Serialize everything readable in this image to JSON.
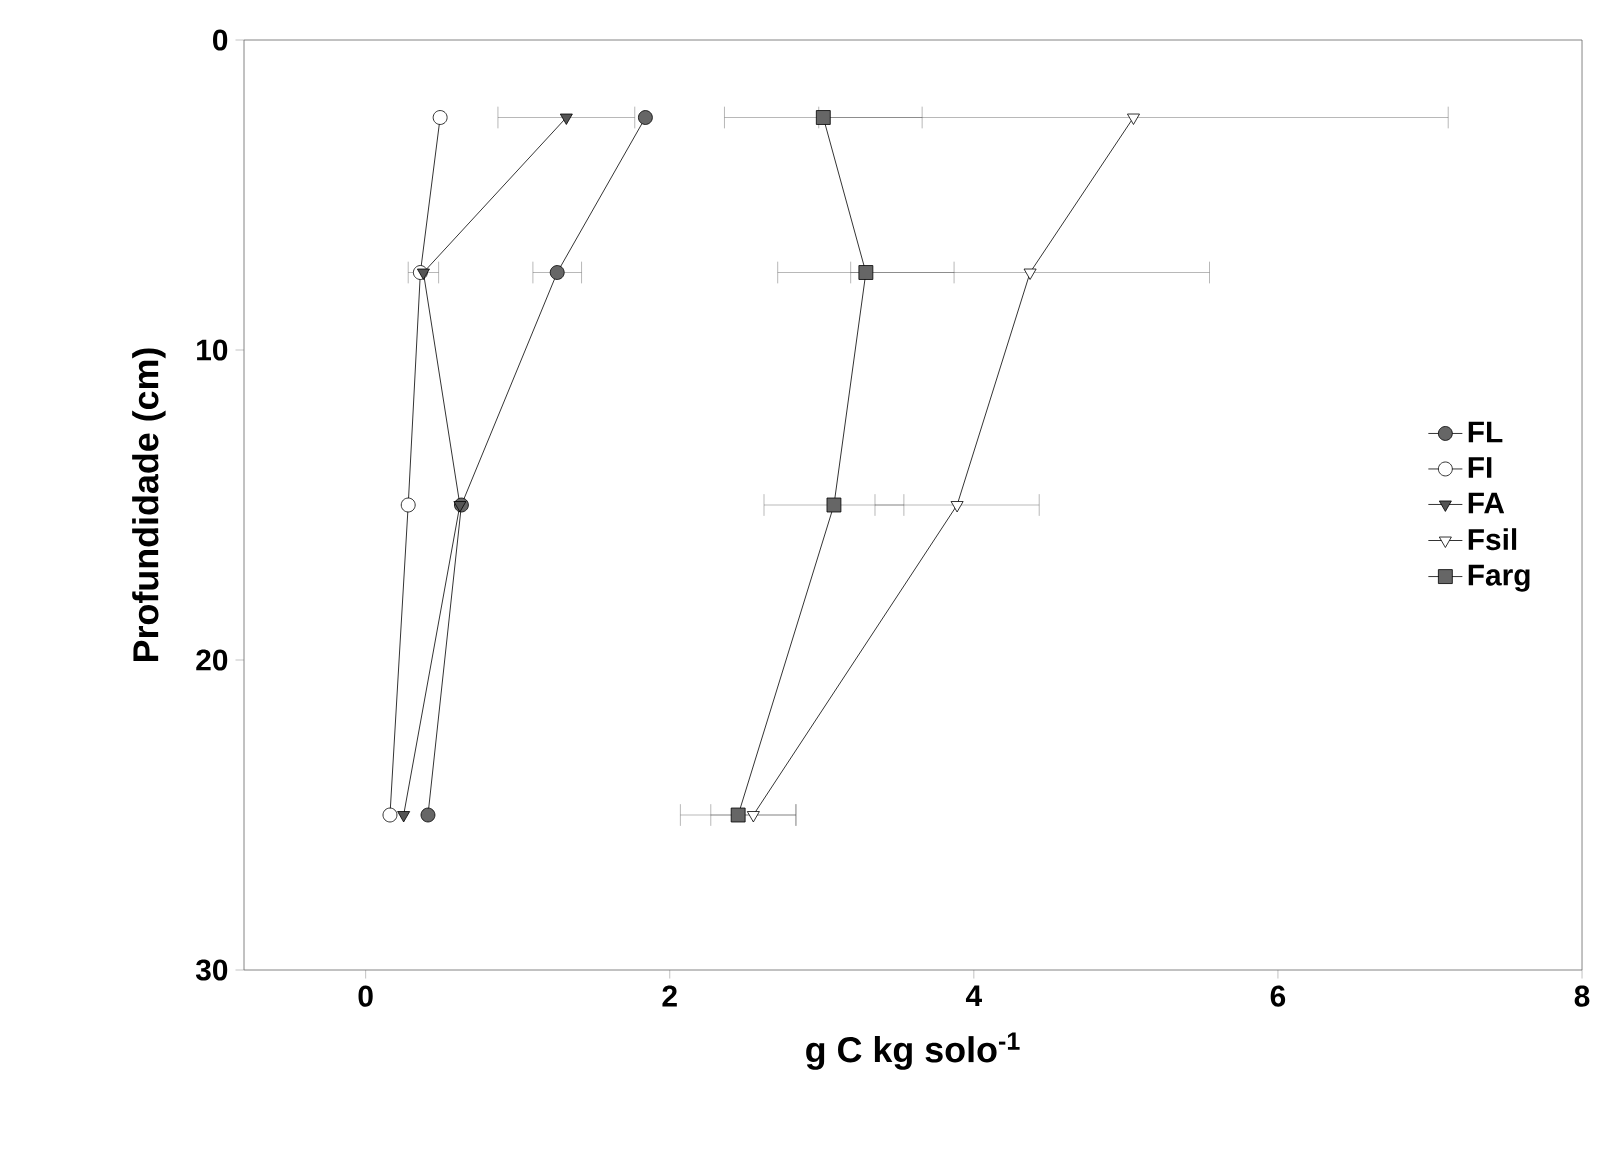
{
  "chart_data": {
    "type": "line",
    "xlabel": "g C kg solo$^{-1}$",
    "ylabel": "Profundidade (cm)",
    "xlim": [
      -0.8,
      8
    ],
    "xticks": [
      0,
      2,
      4,
      6,
      8
    ],
    "ylim": [
      30,
      0
    ],
    "yticks": [
      0,
      10,
      20,
      30
    ],
    "grid": false,
    "legend": "right",
    "line_style": "solid",
    "series": [
      {
        "name": "FL",
        "color": "#666666",
        "marker": "circle",
        "x": [
          1.84,
          1.26,
          0.63,
          0.41
        ],
        "values": [
          2.5,
          7.5,
          15,
          25
        ],
        "xerrors": [
          null,
          0.16,
          null,
          null
        ]
      },
      {
        "name": "FI",
        "color": "#ffffff",
        "marker": "circle",
        "x": [
          0.49,
          0.36,
          0.28,
          0.16
        ],
        "values": [
          2.5,
          7.5,
          15,
          25
        ],
        "xerrors": [
          null,
          null,
          null,
          null
        ]
      },
      {
        "name": "FA",
        "color": "#555555",
        "marker": "triangle down",
        "x": [
          1.32,
          0.38,
          0.62,
          0.25
        ],
        "values": [
          2.5,
          7.5,
          15,
          25
        ],
        "xerrors": [
          0.45,
          0.1,
          null,
          null
        ]
      },
      {
        "name": "Fsil",
        "color": "#ffffff",
        "marker": "triangle down",
        "x": [
          5.05,
          4.37,
          3.89,
          2.55
        ],
        "values": [
          2.5,
          7.5,
          15,
          25
        ],
        "xerrors": [
          2.07,
          1.18,
          0.54,
          0.28
        ]
      },
      {
        "name": "Farg",
        "color": "#666666",
        "marker": "square",
        "x": [
          3.01,
          3.29,
          3.08,
          2.45
        ],
        "values": [
          2.5,
          7.5,
          15,
          25
        ],
        "xerrors": [
          0.65,
          0.58,
          0.46,
          0.38
        ]
      }
    ]
  }
}
